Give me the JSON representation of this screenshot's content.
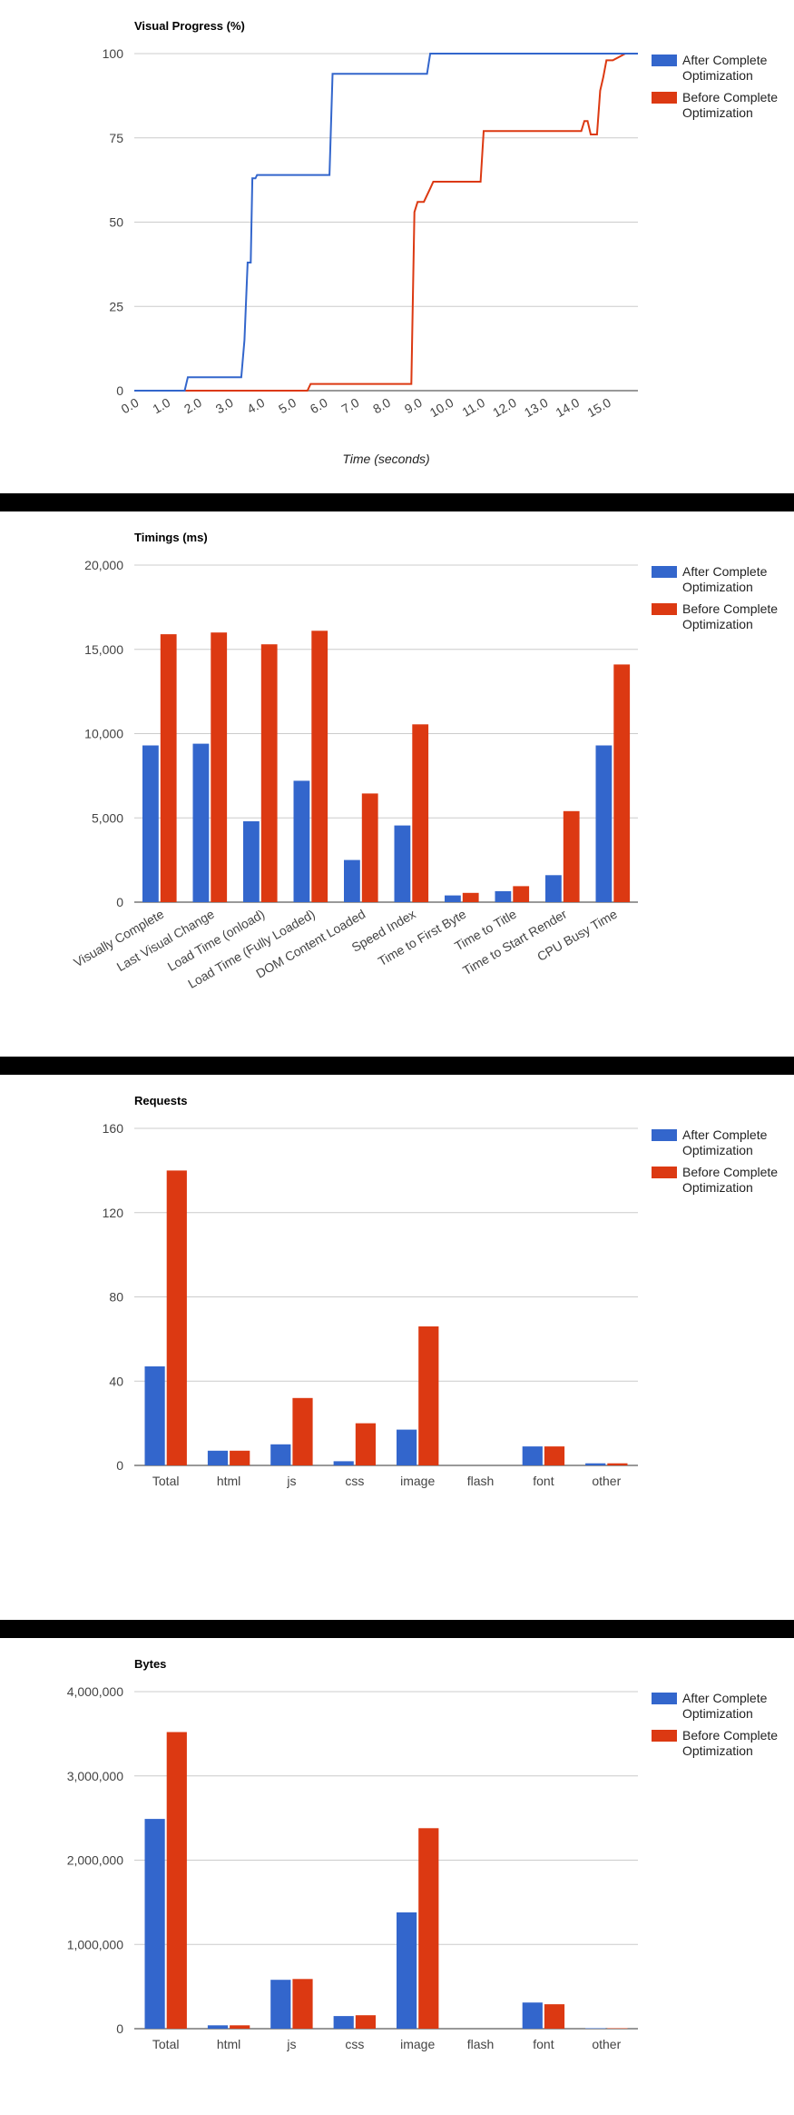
{
  "colors": {
    "after": "#3366cc",
    "before": "#dc3912",
    "grid": "#cccccc",
    "axis": "#333333",
    "separator": "#000000"
  },
  "legend": {
    "after": [
      "After Complete",
      "Optimization"
    ],
    "before": [
      "Before Complete",
      "Optimization"
    ]
  },
  "chart_data": [
    {
      "type": "line",
      "title": "Visual Progress (%)",
      "xlabel": "Time (seconds)",
      "ylabel": "",
      "xlim": [
        0,
        16
      ],
      "ylim": [
        0,
        100
      ],
      "xticks": [
        "0.0",
        "1.0",
        "2.0",
        "3.0",
        "4.0",
        "5.0",
        "6.0",
        "7.0",
        "8.0",
        "9.0",
        "10.0",
        "11.0",
        "12.0",
        "13.0",
        "14.0",
        "15.0"
      ],
      "yticks": [
        "0",
        "25",
        "50",
        "75",
        "100"
      ],
      "grid": true,
      "legend_position": "right",
      "series": [
        {
          "name": "After Complete Optimization",
          "x": [
            0,
            1.6,
            1.7,
            3.4,
            3.5,
            3.6,
            3.7,
            3.75,
            3.85,
            3.9,
            6.2,
            6.3,
            9.3,
            9.4,
            16.0
          ],
          "y": [
            0,
            0,
            4,
            4,
            15,
            38,
            38,
            63,
            63,
            64,
            64,
            94,
            94,
            100,
            100
          ]
        },
        {
          "name": "Before Complete Optimization",
          "x": [
            0,
            5.5,
            5.6,
            8.8,
            8.9,
            9.0,
            9.2,
            9.4,
            9.5,
            9.6,
            11.0,
            11.1,
            14.2,
            14.3,
            14.4,
            14.5,
            14.7,
            14.8,
            14.9,
            15.0,
            15.2,
            15.4,
            15.6,
            16.0
          ],
          "y": [
            0,
            0,
            2,
            2,
            53,
            56,
            56,
            60,
            62,
            62,
            62,
            77,
            77,
            80,
            80,
            76,
            76,
            89,
            93,
            98,
            98,
            99,
            100,
            100
          ]
        }
      ]
    },
    {
      "type": "bar",
      "title": "Timings (ms)",
      "categories": [
        "Visually Complete",
        "Last Visual Change",
        "Load Time (onload)",
        "Load Time (Fully Loaded)",
        "DOM Content Loaded",
        "Speed Index",
        "Time to First Byte",
        "Time to Title",
        "Time to Start Render",
        "CPU Busy Time"
      ],
      "ylim": [
        0,
        20000
      ],
      "yticks": [
        "0",
        "5,000",
        "10,000",
        "15,000",
        "20,000"
      ],
      "rotate_labels": true,
      "grid": true,
      "legend_position": "right",
      "series": [
        {
          "name": "After Complete Optimization",
          "values": [
            9300,
            9400,
            4800,
            7200,
            2500,
            4550,
            400,
            650,
            1600,
            9300
          ]
        },
        {
          "name": "Before Complete Optimization",
          "values": [
            15900,
            16000,
            15300,
            16100,
            6450,
            10550,
            550,
            950,
            5400,
            14100
          ]
        }
      ]
    },
    {
      "type": "bar",
      "title": "Requests",
      "categories": [
        "Total",
        "html",
        "js",
        "css",
        "image",
        "flash",
        "font",
        "other"
      ],
      "ylim": [
        0,
        160
      ],
      "yticks": [
        "0",
        "40",
        "80",
        "120",
        "160"
      ],
      "rotate_labels": false,
      "grid": true,
      "legend_position": "right",
      "series": [
        {
          "name": "After Complete Optimization",
          "values": [
            47,
            7,
            10,
            2,
            17,
            0,
            9,
            1
          ]
        },
        {
          "name": "Before Complete Optimization",
          "values": [
            140,
            7,
            32,
            20,
            66,
            0,
            9,
            1
          ]
        }
      ]
    },
    {
      "type": "bar",
      "title": "Bytes",
      "categories": [
        "Total",
        "html",
        "js",
        "css",
        "image",
        "flash",
        "font",
        "other"
      ],
      "ylim": [
        0,
        4000000
      ],
      "yticks": [
        "0",
        "1,000,000",
        "2,000,000",
        "3,000,000",
        "4,000,000"
      ],
      "rotate_labels": false,
      "grid": true,
      "legend_position": "right",
      "series": [
        {
          "name": "After Complete Optimization",
          "values": [
            2490000,
            40000,
            580000,
            150000,
            1380000,
            0,
            310000,
            5000
          ]
        },
        {
          "name": "Before Complete Optimization",
          "values": [
            3520000,
            40000,
            590000,
            160000,
            2380000,
            0,
            290000,
            5000
          ]
        }
      ]
    }
  ]
}
